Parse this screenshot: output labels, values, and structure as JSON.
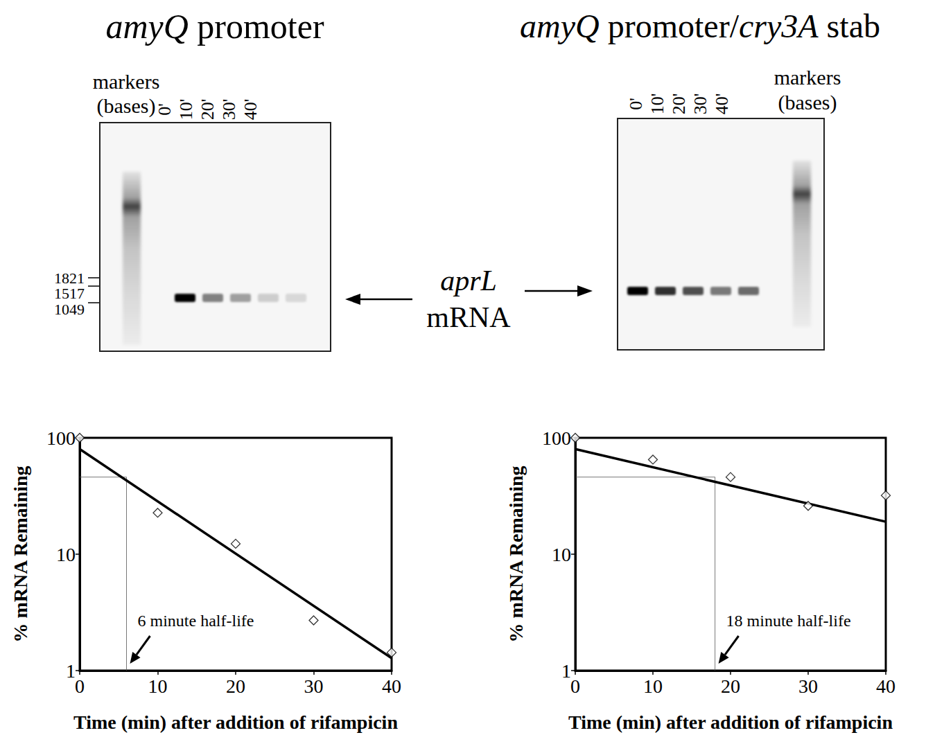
{
  "panels": [
    {
      "title": "amyQ promoter",
      "title_italic": [
        "amyQ"
      ],
      "markers_label": [
        "markers",
        "(bases)"
      ],
      "lanes": [
        "0'",
        "10'",
        "20'",
        "30'",
        "40'"
      ],
      "marker_sizes": [
        1821,
        1517,
        1049
      ]
    },
    {
      "title": "amyQ promoter/cry3A stab",
      "title_italic": [
        "amyQ",
        "cry3A"
      ],
      "markers_label": [
        "markers",
        "(bases)"
      ],
      "lanes": [
        "0'",
        "10'",
        "20'",
        "30'",
        "40'"
      ]
    }
  ],
  "band_label": [
    "aprL",
    "mRNA"
  ],
  "band_label_italic": [
    "aprL"
  ],
  "chart_data": [
    {
      "type": "scatter",
      "marker": "diamond",
      "x": [
        0,
        10,
        20,
        30,
        40
      ],
      "values": [
        100,
        22.7,
        12.3,
        2.7,
        1.43
      ],
      "fit": {
        "x": [
          0,
          40
        ],
        "values": [
          80,
          1.28
        ]
      },
      "half_life": {
        "x": 6,
        "y": 46,
        "label": "6 minute half-life"
      },
      "xlabel": "Time (min) after addition of rifampicin",
      "ylabel": "% mRNA Remaining",
      "xlim": [
        0,
        40
      ],
      "xticks": [
        0,
        10,
        20,
        30,
        40
      ],
      "ylim": [
        1,
        100
      ],
      "yticks": [
        1,
        10,
        100
      ],
      "log": "y",
      "grid": false
    },
    {
      "type": "scatter",
      "marker": "diamond",
      "x": [
        0,
        10,
        20,
        30,
        40
      ],
      "values": [
        100,
        65,
        46,
        26,
        32
      ],
      "fit": {
        "x": [
          0,
          40
        ],
        "values": [
          80,
          19
        ]
      },
      "half_life": {
        "x": 18,
        "y": 46,
        "label": "18 minute half-life"
      },
      "xlabel": "Time (min) after addition of rifampicin",
      "ylabel": "% mRNA Remaining",
      "xlim": [
        0,
        40
      ],
      "xticks": [
        0,
        10,
        20,
        30,
        40
      ],
      "ylim": [
        1,
        100
      ],
      "yticks": [
        1,
        10,
        100
      ],
      "log": "y",
      "grid": false
    }
  ]
}
